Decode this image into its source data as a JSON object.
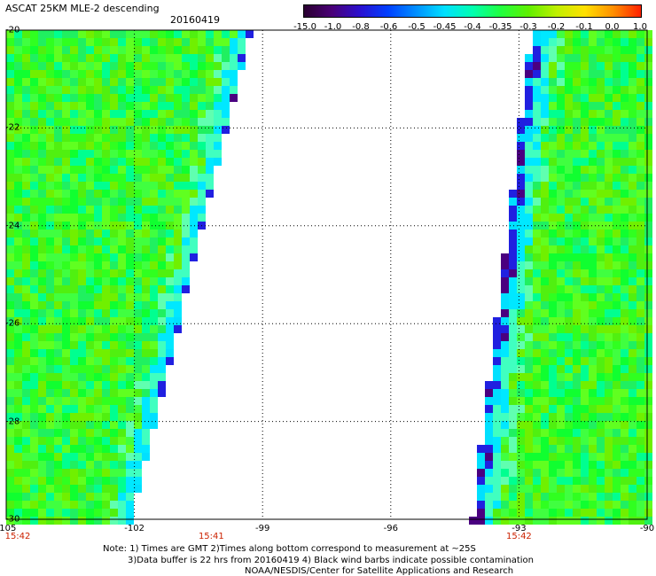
{
  "header": {
    "title": "ASCAT 25KM MLE-2 descending",
    "date": "20160419"
  },
  "colorbar": {
    "labels": [
      "-15.0",
      "-1.0",
      "-0.8",
      "-0.6",
      "-0.5",
      "-0.45",
      "-0.4",
      "-0.35",
      "-0.3",
      "-0.2",
      "-0.1",
      "0.0",
      "1.0"
    ],
    "colors": [
      "#2a0030",
      "#4a0078",
      "#2a10d0",
      "#0040ff",
      "#0090ff",
      "#00e0ff",
      "#00ffb0",
      "#20ff40",
      "#60f000",
      "#c0f000",
      "#ffe000",
      "#ff9000",
      "#ff2000"
    ]
  },
  "axes": {
    "lon_ticks": [
      "-105",
      "-102",
      "-99",
      "-96",
      "-93",
      "-90"
    ],
    "lat_ticks": [
      "-20",
      "-22",
      "-24",
      "-26",
      "-28",
      "-30"
    ],
    "lon_range": [
      -105,
      -90
    ],
    "lat_range": [
      -30,
      -20
    ]
  },
  "times": [
    {
      "label": "15:42",
      "lon": -105
    },
    {
      "label": "15:41",
      "lon": -100.2
    },
    {
      "label": "15:42",
      "lon": -93
    }
  ],
  "swaths": {
    "left_edge_lon": {
      "top": -99.2,
      "bottom": -102.0
    },
    "right_edge_lon": {
      "top": -92.8,
      "bottom": -94.2
    }
  },
  "notes": {
    "line1": "Note: 1) Times are GMT 2)Times along bottom correspond to measurement at ~25S",
    "line2": "3)Data buffer is 22 hrs from 20160419 4) Black wind barbs indicate possible contamination",
    "line3": "NOAA/NESDIS/Center for Satellite Applications and Research"
  }
}
